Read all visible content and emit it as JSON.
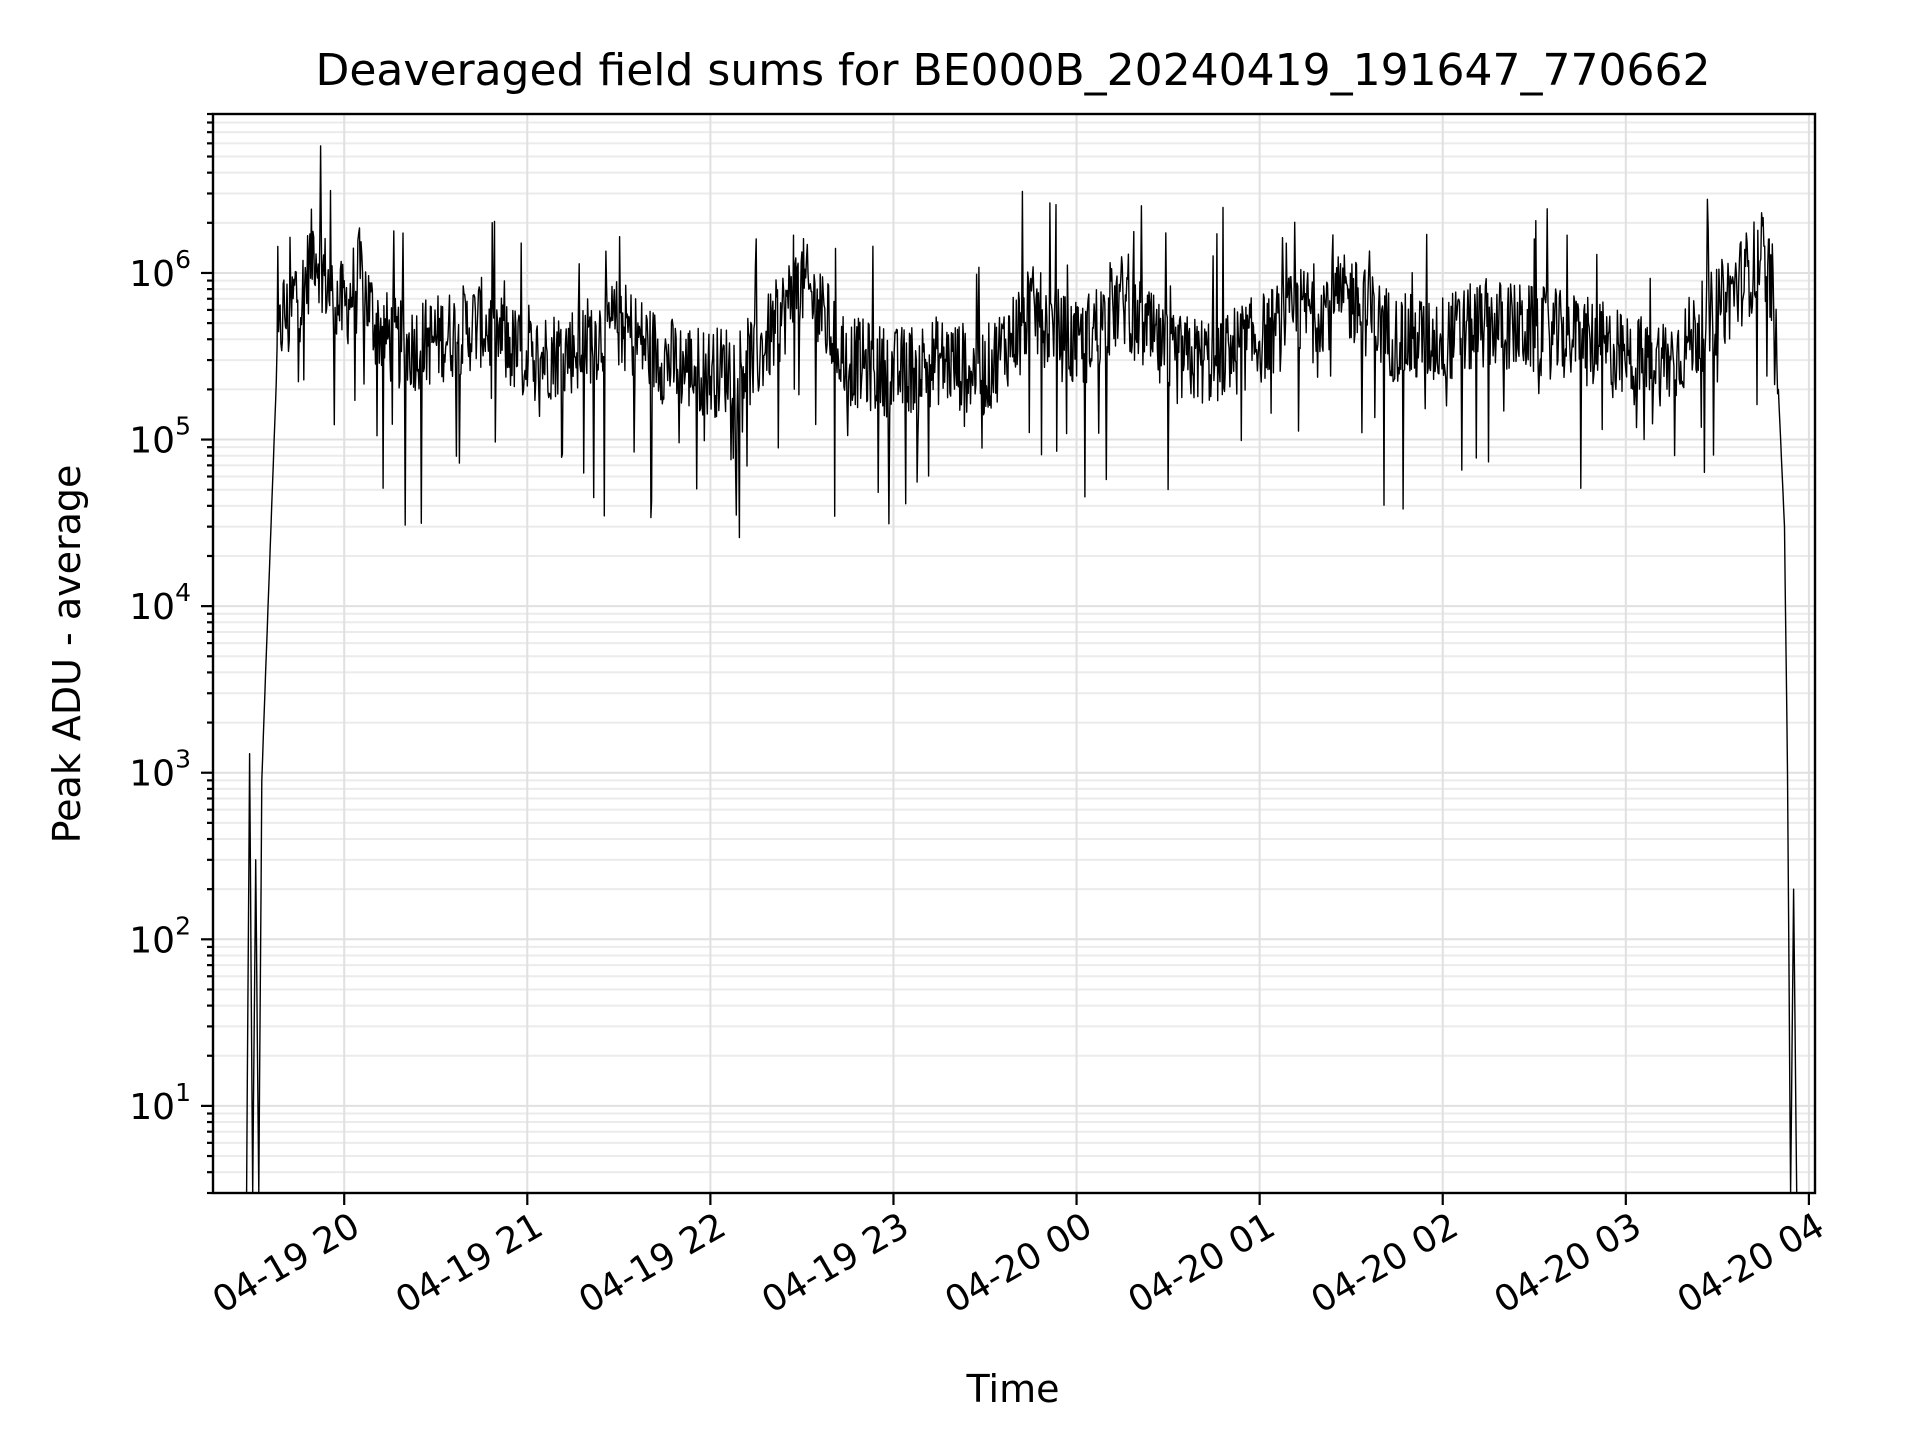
{
  "chart_data": {
    "type": "line",
    "title": "Deaveraged field sums for BE000B_20240419_191647_770662",
    "xlabel": "Time",
    "ylabel": "Peak ADU - average",
    "y_scale": "log",
    "ylim": [
      3,
      9000000
    ],
    "xlim": [
      "2024-04-19 19:17",
      "2024-04-20 04:02"
    ],
    "x_tick_labels": [
      "04-19 20",
      "04-19 21",
      "04-19 22",
      "04-19 23",
      "04-20 00",
      "04-20 01",
      "04-20 02",
      "04-20 03",
      "04-20 04"
    ],
    "x_tick_times": [
      "2024-04-19 20:00",
      "2024-04-19 21:00",
      "2024-04-19 22:00",
      "2024-04-19 23:00",
      "2024-04-20 00:00",
      "2024-04-20 01:00",
      "2024-04-20 02:00",
      "2024-04-20 03:00",
      "2024-04-20 04:00"
    ],
    "y_ticks": [
      10,
      100,
      1000,
      10000,
      100000,
      1000000
    ],
    "y_tick_labels": [
      {
        "base": "10",
        "exp": "1"
      },
      {
        "base": "10",
        "exp": "2"
      },
      {
        "base": "10",
        "exp": "3"
      },
      {
        "base": "10",
        "exp": "4"
      },
      {
        "base": "10",
        "exp": "5"
      },
      {
        "base": "10",
        "exp": "6"
      }
    ],
    "grid": "both",
    "line_color": "#000000",
    "series": [
      {
        "x": [
          "2024-04-19 19:28",
          "2024-04-19 19:29",
          "2024-04-19 19:30",
          "2024-04-19 19:31",
          "2024-04-19 19:32",
          "2024-04-19 19:33",
          "2024-04-19 19:34",
          "2024-04-19 19:36",
          "2024-04-19 19:38",
          "2024-04-19 19:40",
          "2024-04-19 19:42",
          "2024-04-19 19:44",
          "2024-04-19 19:46",
          "2024-04-19 19:48",
          "2024-04-19 19:50",
          "2024-04-19 19:52",
          "2024-04-19 19:55",
          "2024-04-19 20:00",
          "2024-04-19 20:05",
          "2024-04-19 20:10",
          "2024-04-19 20:15",
          "2024-04-19 20:20",
          "2024-04-19 20:30",
          "2024-04-19 20:45",
          "2024-04-19 20:55",
          "2024-04-19 21:00",
          "2024-04-19 21:15",
          "2024-04-19 21:30",
          "2024-04-19 21:45",
          "2024-04-19 22:00",
          "2024-04-19 22:15",
          "2024-04-19 22:30",
          "2024-04-19 22:45",
          "2024-04-19 23:00",
          "2024-04-19 23:15",
          "2024-04-19 23:30",
          "2024-04-19 23:45",
          "2024-04-20 00:00",
          "2024-04-20 00:15",
          "2024-04-20 00:30",
          "2024-04-20 00:45",
          "2024-04-20 01:00",
          "2024-04-20 01:15",
          "2024-04-20 01:30",
          "2024-04-20 01:45",
          "2024-04-20 02:00",
          "2024-04-20 02:15",
          "2024-04-20 02:30",
          "2024-04-20 02:45",
          "2024-04-20 03:00",
          "2024-04-20 03:15",
          "2024-04-20 03:30",
          "2024-04-20 03:40",
          "2024-04-20 03:45",
          "2024-04-20 03:48",
          "2024-04-20 03:50",
          "2024-04-20 03:52",
          "2024-04-20 03:53",
          "2024-04-20 03:54",
          "2024-04-20 03:55",
          "2024-04-20 03:56"
        ],
        "y": [
          3,
          1300,
          3,
          300,
          3,
          900,
          3000,
          30000,
          300000,
          600000,
          500000,
          800000,
          700000,
          1000000,
          1500000,
          1200000,
          800000,
          600000,
          1000000,
          500000,
          400000,
          350000,
          400000,
          500000,
          350000,
          300000,
          350000,
          500000,
          300000,
          250000,
          300000,
          900000,
          300000,
          250000,
          300000,
          250000,
          600000,
          350000,
          700000,
          300000,
          300000,
          400000,
          600000,
          700000,
          400000,
          400000,
          500000,
          450000,
          400000,
          300000,
          300000,
          600000,
          1000000,
          1300000,
          800000,
          200000,
          30000,
          1000,
          3,
          200,
          3
        ]
      }
    ]
  }
}
